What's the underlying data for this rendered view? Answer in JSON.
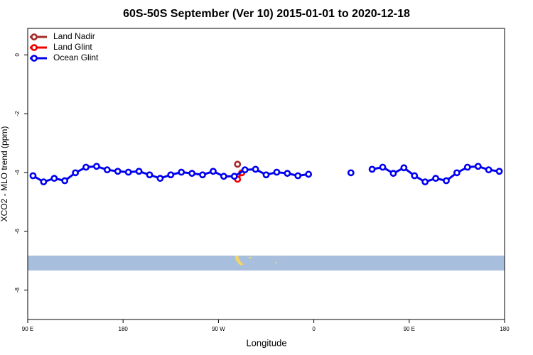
{
  "chart_data": {
    "type": "line",
    "title": "60S-50S September (Ver 10)   2015-01-01 to 2020-12-18",
    "x_label": "Longitude",
    "y_label": "XCO2 - MLO trend (ppm)",
    "xlim": [
      90,
      540
    ],
    "xticks": [
      {
        "value": 90,
        "label": "90 E"
      },
      180,
      {
        "value": 270,
        "label": "90 W"
      },
      {
        "value": 360,
        "label": "0"
      },
      {
        "value": 450,
        "label": "90 E"
      },
      {
        "value": 540,
        "label": "180"
      }
    ],
    "ylim": [
      -9.0,
      0.9
    ],
    "yticks": [
      0,
      -2,
      -4,
      -6,
      -8
    ],
    "legend": "top-left",
    "series": [
      {
        "name": "Land Nadir",
        "color": "#a52a2a",
        "x": [
          288
        ],
        "values": [
          -3.72
        ]
      },
      {
        "name": "Land Glint",
        "color": "#ee0000",
        "x": [
          288,
          292
        ],
        "values": [
          -4.23,
          -4.01
        ]
      },
      {
        "name": "Ocean Glint",
        "color": "#0000ee",
        "x": [
          95,
          105,
          115,
          125,
          135,
          145,
          155,
          165,
          175,
          185,
          195,
          205,
          215,
          225,
          235,
          245,
          255,
          265,
          275,
          285,
          295,
          305,
          315,
          325,
          335,
          345,
          355,
          365,
          375,
          385,
          395,
          405,
          415,
          425,
          435,
          445,
          455,
          465,
          475,
          485,
          495,
          505,
          515,
          525,
          535
        ],
        "values": [
          -4.11,
          -4.32,
          -4.2,
          -4.28,
          -4.01,
          -3.82,
          -3.79,
          -3.91,
          -3.96,
          -3.99,
          -3.96,
          -4.08,
          -4.2,
          -4.08,
          -3.99,
          -4.03,
          -4.08,
          -3.96,
          -4.13,
          -4.13,
          -3.91,
          -3.89,
          -4.08,
          -3.99,
          -4.03,
          -4.11,
          -4.06,
          null,
          null,
          null,
          -4.01,
          null,
          -3.89,
          -3.82,
          -4.03,
          -3.84,
          -4.11,
          -4.32,
          -4.2,
          -4.28,
          -4.01,
          -3.82,
          -3.79,
          -3.91,
          -3.96
        ]
      }
    ]
  }
}
